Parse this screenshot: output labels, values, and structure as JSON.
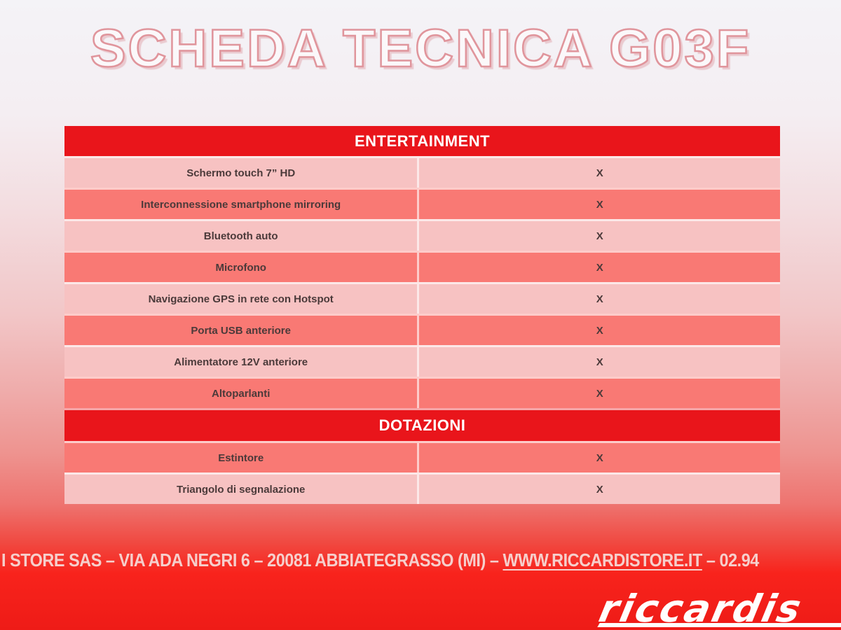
{
  "page": {
    "title": "SCHEDA TECNICA G03F"
  },
  "table": {
    "sections": [
      {
        "title": "ENTERTAINMENT",
        "rows": [
          {
            "label": "Schermo touch 7” HD",
            "value": "X"
          },
          {
            "label": "Interconnessione smartphone mirroring",
            "value": "X"
          },
          {
            "label": "Bluetooth auto",
            "value": "X"
          },
          {
            "label": "Microfono",
            "value": "X"
          },
          {
            "label": "Navigazione GPS in rete con Hotspot",
            "value": "X"
          },
          {
            "label": "Porta USB anteriore",
            "value": "X"
          },
          {
            "label": "Alimentatore 12V anteriore",
            "value": "X"
          },
          {
            "label": "Altoparlanti",
            "value": "X"
          }
        ]
      },
      {
        "title": "DOTAZIONI",
        "rows": [
          {
            "label": "Estintore",
            "value": "X"
          },
          {
            "label": "Triangolo di segnalazione",
            "value": "X"
          }
        ]
      }
    ]
  },
  "footer": {
    "prefix": "I STORE SAS – VIA ADA NEGRI 6 – 20081 ABBIATEGRASSO (MI) – ",
    "link": "WWW.RICCARDISTORE.IT",
    "suffix": " – 02.94"
  },
  "logo": {
    "text": "riccardis"
  },
  "colors": {
    "header_red": "#e9151b",
    "row_light": "#f7c2c2",
    "row_dark": "#f97974",
    "bottom_red": "#ee1b17",
    "footer_text": "#f6cfcc",
    "title_outline": "#e0959c"
  }
}
